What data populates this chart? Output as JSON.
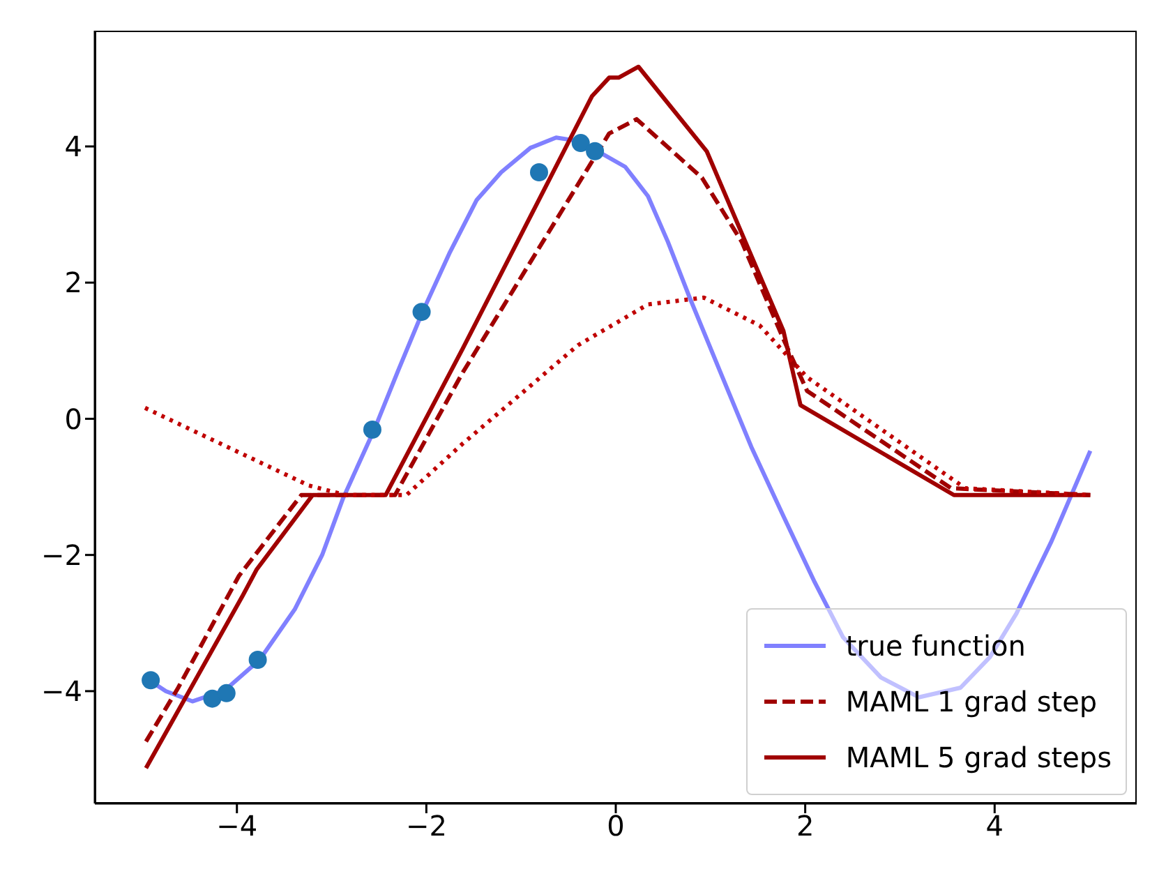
{
  "chart_data": {
    "type": "line",
    "xlim": [
      -5.5,
      5.5
    ],
    "ylim": [
      -5.65,
      5.7
    ],
    "xticks": [
      -4,
      -2,
      0,
      2,
      4
    ],
    "yticks": [
      -4,
      -2,
      0,
      2,
      4
    ],
    "grid": false,
    "legend": "bottom right",
    "series": [
      {
        "name": "true function",
        "color": "#8080ff",
        "line_style": "solid",
        "x": [
          -4.99,
          -4.75,
          -4.47,
          -4.13,
          -3.76,
          -3.39,
          -3.1,
          -2.88,
          -2.55,
          -2.3,
          -2.04,
          -1.75,
          -1.47,
          -1.21,
          -0.9,
          -0.63,
          -0.4,
          -0.19,
          0.1,
          0.34,
          0.55,
          0.78,
          1.1,
          1.43,
          1.77,
          2.1,
          2.4,
          2.8,
          3.2,
          3.64,
          3.95,
          4.23,
          4.6,
          5.01
        ],
        "values": [
          -3.78,
          -4.0,
          -4.15,
          -3.99,
          -3.54,
          -2.8,
          -2.0,
          -1.17,
          -0.16,
          0.7,
          1.57,
          2.45,
          3.21,
          3.62,
          3.98,
          4.13,
          4.08,
          3.93,
          3.7,
          3.27,
          2.6,
          1.78,
          0.7,
          -0.41,
          -1.43,
          -2.4,
          -3.21,
          -3.8,
          -4.09,
          -3.95,
          -3.5,
          -2.86,
          -1.8,
          -0.47
        ]
      },
      {
        "name": "MAML 1 grad step",
        "color": "#a00000",
        "line_style": "dashed",
        "x": [
          -4.96,
          -4.62,
          -3.98,
          -3.32,
          -2.33,
          -1.62,
          -0.07,
          0.22,
          0.91,
          1.33,
          1.77,
          2.02,
          3.54,
          5.01
        ],
        "values": [
          -4.74,
          -3.95,
          -2.31,
          -1.12,
          -1.12,
          0.67,
          4.19,
          4.4,
          3.54,
          2.6,
          1.17,
          0.41,
          -1.02,
          -1.12
        ]
      },
      {
        "name": "MAML 5 grad steps",
        "color": "#a00000",
        "line_style": "solid",
        "x": [
          -4.96,
          -3.94,
          -3.79,
          -3.2,
          -2.43,
          -1.62,
          -0.25,
          -0.07,
          0.03,
          0.24,
          0.96,
          1.77,
          1.95,
          3.57,
          5.01
        ],
        "values": [
          -5.13,
          -2.6,
          -2.21,
          -1.12,
          -1.12,
          1.02,
          4.74,
          5.01,
          5.01,
          5.17,
          3.93,
          1.29,
          0.2,
          -1.12,
          -1.12
        ]
      },
      {
        "color": "#c00000",
        "line_style": "dotted",
        "x": [
          -4.97,
          -3.24,
          -2.85,
          -2.21,
          -1.62,
          -0.4,
          0.34,
          0.93,
          1.52,
          1.92,
          2.02,
          3.69,
          5.01
        ],
        "values": [
          0.16,
          -0.98,
          -1.12,
          -1.12,
          -0.37,
          1.08,
          1.68,
          1.78,
          1.37,
          0.76,
          0.61,
          -1.02,
          -1.12
        ]
      },
      {
        "type": "scatter",
        "color": "#1f77b4",
        "marker": "circle",
        "x": [
          -4.91,
          -4.26,
          -4.11,
          -3.78,
          -2.57,
          -2.05,
          -0.81,
          -0.37,
          -0.22
        ],
        "values": [
          -3.84,
          -4.11,
          -4.03,
          -3.54,
          -0.16,
          1.57,
          3.62,
          4.05,
          3.93
        ]
      }
    ]
  }
}
